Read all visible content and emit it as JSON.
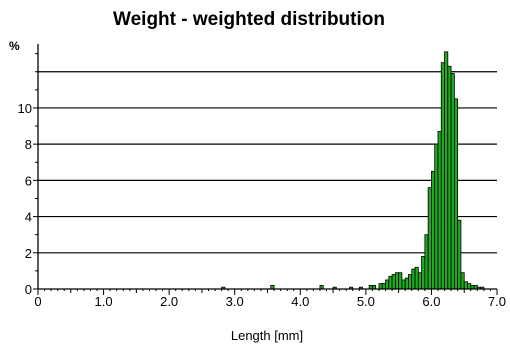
{
  "chart_data": {
    "type": "bar",
    "title": "Weight - weighted distribution",
    "xlabel": "Length [mm]",
    "ylabel": "%",
    "xlim": [
      0,
      7.0
    ],
    "ylim": [
      0,
      13.2
    ],
    "grid": "horizontal",
    "bin_width": 0.05,
    "colors": {
      "bar_fill": "#1faa1f",
      "bar_stroke": "#000000",
      "axis": "#000000",
      "grid": "#000000"
    },
    "x_ticks": [
      0,
      1.0,
      2.0,
      3.0,
      4.0,
      5.0,
      6.0,
      7.0
    ],
    "x_tick_labels": [
      "0",
      "1.0",
      "2.0",
      "3.0",
      "4.0",
      "5.0",
      "6.0",
      "7.0"
    ],
    "y_ticks": [
      0,
      2,
      4,
      6,
      8,
      10
    ],
    "y_tick_labels": [
      "0",
      "2",
      "4",
      "6",
      "8",
      "10"
    ],
    "y_gridlines": [
      2,
      4,
      6,
      8,
      10,
      12
    ],
    "series": [
      {
        "x": [
          2.8,
          3.55,
          4.3,
          4.5,
          4.75,
          4.9,
          5.05,
          5.1,
          5.2,
          5.25,
          5.3,
          5.35,
          5.4,
          5.45,
          5.5,
          5.55,
          5.6,
          5.65,
          5.7,
          5.75,
          5.8,
          5.85,
          5.9,
          5.95,
          6.0,
          6.05,
          6.1,
          6.15,
          6.2,
          6.25,
          6.3,
          6.35,
          6.4,
          6.45,
          6.5,
          6.55,
          6.6,
          6.65,
          6.7,
          6.75
        ],
        "values": [
          0.1,
          0.2,
          0.2,
          0.1,
          0.1,
          0.1,
          0.2,
          0.2,
          0.3,
          0.3,
          0.5,
          0.7,
          0.8,
          0.9,
          0.9,
          0.5,
          0.6,
          0.8,
          1.1,
          1.2,
          0.9,
          1.8,
          3.0,
          5.6,
          6.5,
          8.0,
          8.7,
          12.5,
          13.1,
          12.3,
          11.9,
          10.5,
          3.8,
          0.9,
          0.4,
          0.3,
          0.2,
          0.2,
          0.1,
          0.1
        ]
      }
    ]
  }
}
